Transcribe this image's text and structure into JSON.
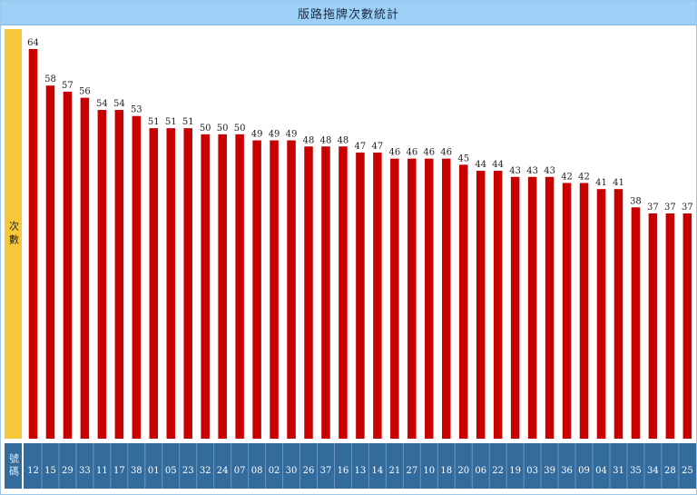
{
  "chart_data": {
    "type": "bar",
    "title": "版路拖牌次數統計",
    "ylabel": "次數",
    "xlabel": "號碼",
    "ylim": [
      0,
      64
    ],
    "grid": false,
    "colors": {
      "bar": "#c80000",
      "title_bar": "#9dd0f6",
      "y_axis_bar": "#f8c83c",
      "x_axis_band": "#336b9c"
    },
    "categories": [
      "12",
      "15",
      "29",
      "33",
      "11",
      "17",
      "38",
      "01",
      "05",
      "23",
      "32",
      "24",
      "07",
      "08",
      "02",
      "30",
      "26",
      "37",
      "16",
      "13",
      "14",
      "21",
      "27",
      "10",
      "18",
      "20",
      "06",
      "22",
      "19",
      "03",
      "39",
      "36",
      "09",
      "04",
      "31",
      "35",
      "34",
      "28",
      "25"
    ],
    "values": [
      64,
      58,
      57,
      56,
      54,
      54,
      53,
      51,
      51,
      51,
      50,
      50,
      50,
      49,
      49,
      49,
      48,
      48,
      48,
      47,
      47,
      46,
      46,
      46,
      46,
      45,
      44,
      44,
      43,
      43,
      43,
      42,
      42,
      41,
      41,
      38,
      37,
      37,
      37
    ]
  }
}
